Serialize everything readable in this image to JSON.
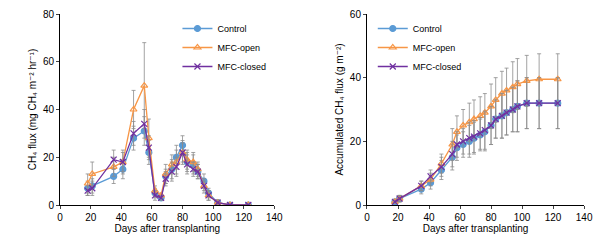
{
  "chart_data": [
    {
      "type": "line",
      "x_label": "Days after transplanting",
      "y_label": "CH₄ flux (mg CH₄ m⁻² hr⁻¹)",
      "x": [
        18,
        21,
        35,
        41,
        48,
        55,
        58,
        62,
        66,
        69,
        73,
        76,
        80,
        83,
        87,
        90,
        94,
        97,
        103,
        111,
        123
      ],
      "series": [
        {
          "name": "Control",
          "color": "#5b9bd5",
          "marker": "circle",
          "values": [
            7,
            8,
            12,
            15,
            28,
            31,
            22,
            5,
            3,
            12,
            15,
            20,
            25,
            18,
            17,
            14,
            10,
            5,
            1,
            0,
            0
          ],
          "errors": [
            3,
            3,
            3,
            4,
            5,
            6,
            5,
            2,
            1,
            3,
            4,
            5,
            4,
            4,
            4,
            3,
            3,
            2,
            1,
            0,
            0
          ]
        },
        {
          "name": "MFC-open",
          "color": "#f79646",
          "marker": "triangle-open",
          "values": [
            9,
            13,
            16,
            18,
            40,
            50,
            28,
            6,
            4,
            13,
            17,
            18,
            22,
            19,
            18,
            15,
            8,
            4,
            1,
            0,
            0
          ],
          "errors": [
            4,
            5,
            4,
            5,
            8,
            18,
            8,
            2,
            1,
            4,
            4,
            5,
            5,
            4,
            4,
            3,
            3,
            2,
            1,
            0,
            0
          ]
        },
        {
          "name": "MFC-closed",
          "color": "#7030a0",
          "marker": "x",
          "values": [
            6,
            7,
            19,
            18,
            30,
            34,
            24,
            4,
            3,
            11,
            14,
            16,
            22,
            17,
            15,
            14,
            8,
            4,
            1,
            0,
            0
          ],
          "errors": [
            2,
            3,
            4,
            4,
            5,
            6,
            5,
            2,
            1,
            3,
            4,
            4,
            4,
            4,
            3,
            3,
            2,
            2,
            1,
            0,
            0
          ]
        }
      ],
      "xlim": [
        0,
        140
      ],
      "xticks": [
        0,
        20,
        40,
        60,
        80,
        100,
        120,
        140
      ],
      "ylim": [
        0,
        80
      ],
      "yticks": [
        0,
        20,
        40,
        60,
        80
      ],
      "grid": false,
      "legend": "upper right"
    },
    {
      "type": "line",
      "x_label": "Days after transplanting",
      "y_label": "Accumulated CH₄ flux (g m⁻²)",
      "x": [
        18,
        21,
        35,
        41,
        48,
        55,
        58,
        62,
        66,
        69,
        73,
        76,
        80,
        83,
        87,
        90,
        94,
        97,
        103,
        111,
        123
      ],
      "series": [
        {
          "name": "Control",
          "color": "#5b9bd5",
          "marker": "circle",
          "values": [
            1,
            2,
            5,
            7,
            11,
            15,
            18,
            19,
            20,
            21,
            22,
            23,
            25,
            27,
            28,
            29,
            30,
            31,
            32,
            32,
            32
          ],
          "errors": [
            0.5,
            1,
            1.5,
            2,
            3,
            4,
            4,
            4,
            5,
            5,
            5,
            6,
            6,
            6,
            7,
            7,
            7,
            8,
            8,
            8,
            8
          ]
        },
        {
          "name": "MFC-open",
          "color": "#f79646",
          "marker": "triangle-open",
          "values": [
            1,
            2,
            6,
            8,
            13,
            19,
            23,
            25,
            26,
            27,
            28,
            29,
            31,
            33,
            35,
            36,
            37,
            38,
            39,
            39.5,
            39.5
          ],
          "errors": [
            0.5,
            1,
            1.5,
            2,
            3,
            5,
            5,
            5,
            6,
            6,
            6,
            6,
            7,
            7,
            7,
            7,
            8,
            8,
            8,
            8,
            8
          ]
        },
        {
          "name": "MFC-closed",
          "color": "#7030a0",
          "marker": "x",
          "values": [
            1,
            2,
            6,
            9,
            12,
            16,
            19,
            20,
            21,
            21.5,
            22.5,
            23.5,
            25,
            27,
            28,
            29,
            30,
            31,
            32,
            32,
            32
          ],
          "errors": [
            0.5,
            1,
            1.5,
            2,
            3,
            4,
            4,
            4,
            5,
            5,
            5,
            6,
            6,
            6,
            7,
            7,
            7,
            8,
            8,
            8,
            8
          ]
        }
      ],
      "xlim": [
        0,
        140
      ],
      "xticks": [
        0,
        20,
        40,
        60,
        80,
        100,
        120,
        140
      ],
      "ylim": [
        0,
        60
      ],
      "yticks": [
        0,
        20,
        40,
        60
      ],
      "grid": false,
      "legend": "upper left"
    }
  ]
}
